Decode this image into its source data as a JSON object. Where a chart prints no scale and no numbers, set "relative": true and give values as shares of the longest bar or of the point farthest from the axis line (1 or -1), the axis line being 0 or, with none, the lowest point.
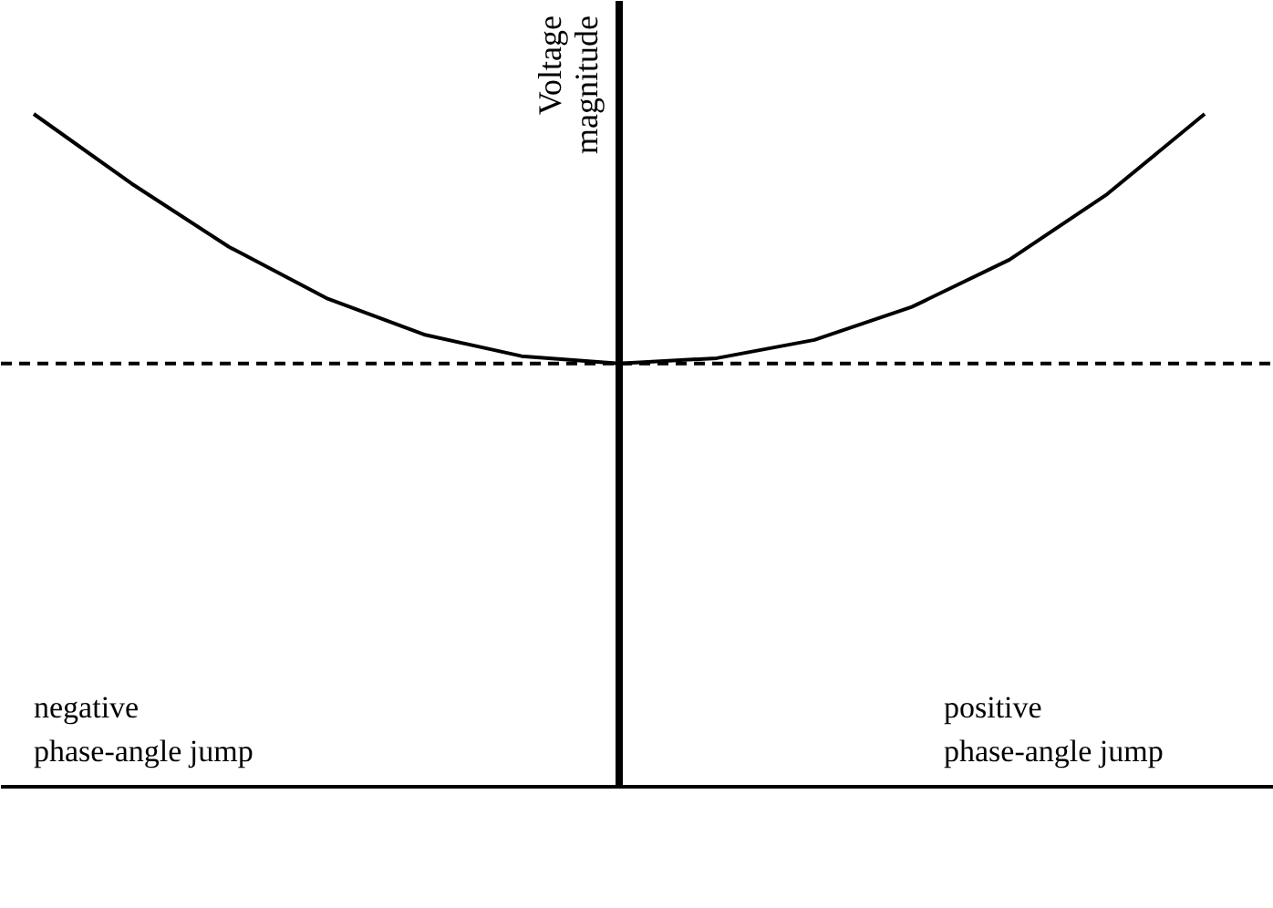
{
  "chart_data": {
    "type": "line",
    "relative": true,
    "ylabel": "Voltage magnitude",
    "categories": [
      null,
      null,
      null,
      null,
      null,
      null,
      null,
      null,
      null,
      null,
      null,
      null,
      null
    ],
    "series": [
      {
        "color": "#000000",
        "values": [
          1.0,
          0.897,
          0.803,
          0.727,
          0.673,
          0.641,
          0.63,
          0.638,
          0.665,
          0.714,
          0.784,
          0.881,
          1.0
        ]
      }
    ],
    "ref_lines": [
      {
        "axis": "y",
        "value": 0.63,
        "line_style": "dashed",
        "color": "#000000"
      }
    ],
    "annotations": [
      "negative phase-angle jump",
      "positive phase-angle jump"
    ],
    "grid": false,
    "marker": "none",
    "line_style": "solid"
  }
}
